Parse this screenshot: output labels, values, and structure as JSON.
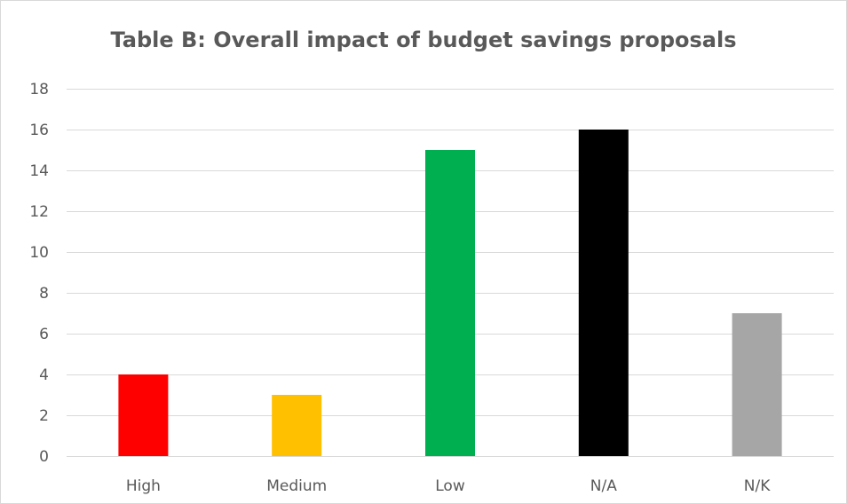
{
  "chart_data": {
    "type": "bar",
    "title": "Table B: Overall impact of budget savings proposals",
    "categories": [
      "High",
      "Medium",
      "Low",
      "N/A",
      "N/K"
    ],
    "values": [
      4,
      3,
      15,
      16,
      7
    ],
    "bar_colors": [
      "#ff0000",
      "#ffc000",
      "#00b050",
      "#000000",
      "#a6a6a6"
    ],
    "xlabel": "",
    "ylabel": "",
    "ylim": [
      0,
      18
    ],
    "yticks": [
      0,
      2,
      4,
      6,
      8,
      10,
      12,
      14,
      16,
      18
    ],
    "grid": true,
    "legend": "none",
    "gridline_color": "#d9d9d9",
    "axis_color": "#d9d9d9",
    "text_color": "#595959"
  }
}
